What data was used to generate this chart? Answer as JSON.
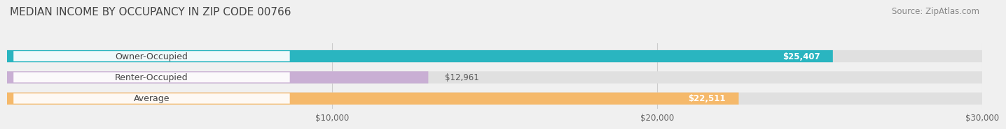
{
  "title": "MEDIAN INCOME BY OCCUPANCY IN ZIP CODE 00766",
  "source": "Source: ZipAtlas.com",
  "categories": [
    "Owner-Occupied",
    "Renter-Occupied",
    "Average"
  ],
  "values": [
    25407,
    12961,
    22511
  ],
  "bar_colors": [
    "#2ab5c0",
    "#c9afd4",
    "#f5b96b"
  ],
  "value_labels": [
    "$25,407",
    "$12,961",
    "$22,511"
  ],
  "value_inside": [
    true,
    false,
    true
  ],
  "xlim": [
    0,
    30000
  ],
  "xticks": [
    10000,
    20000,
    30000
  ],
  "xtick_labels": [
    "$10,000",
    "$20,000",
    "$30,000"
  ],
  "bar_height": 0.55,
  "background_color": "#f0f0f0",
  "bar_bg_color": "#e0e0e0",
  "title_fontsize": 11,
  "source_fontsize": 8.5,
  "label_fontsize": 9,
  "value_fontsize": 8.5
}
